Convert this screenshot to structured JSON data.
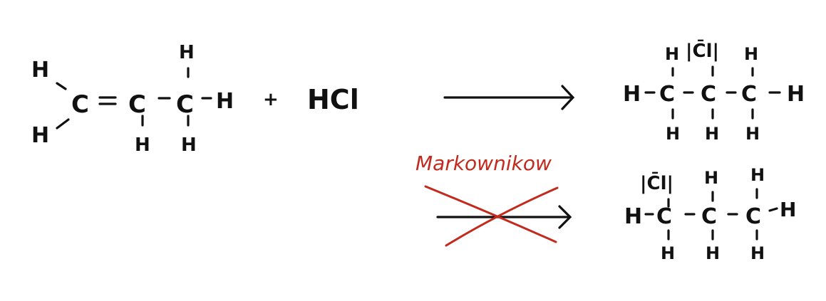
{
  "colors": {
    "ink": "#111111",
    "annotation": "#c22a1d",
    "background": "#ffffff"
  },
  "reactant": {
    "atoms": {
      "H": "H",
      "C": "C"
    }
  },
  "reagent": "HCl",
  "plus": "+",
  "annotation": "Markownikow",
  "product_major": {
    "Cl": "|C̄l|",
    "atoms": {
      "H": "H",
      "C": "C"
    }
  },
  "product_minor": {
    "Cl": "|C̄l|",
    "atoms": {
      "H": "H",
      "C": "C"
    }
  }
}
